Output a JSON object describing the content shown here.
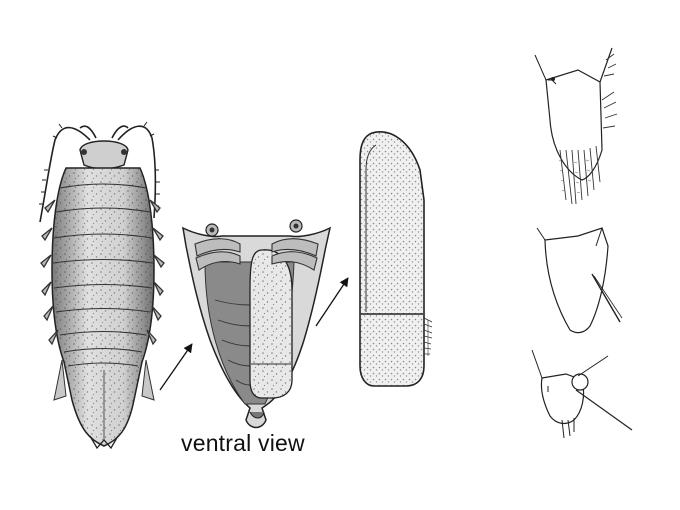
{
  "caption": {
    "ventral_view": "ventral view"
  },
  "colors": {
    "ink": "#1a1a1a",
    "shade": "#9a9a9a",
    "paper": "#f4f4f4",
    "background": "#ffffff"
  },
  "icons": {
    "arrow_1": "arrow-right-up-icon",
    "arrow_2": "arrow-right-up-icon"
  }
}
